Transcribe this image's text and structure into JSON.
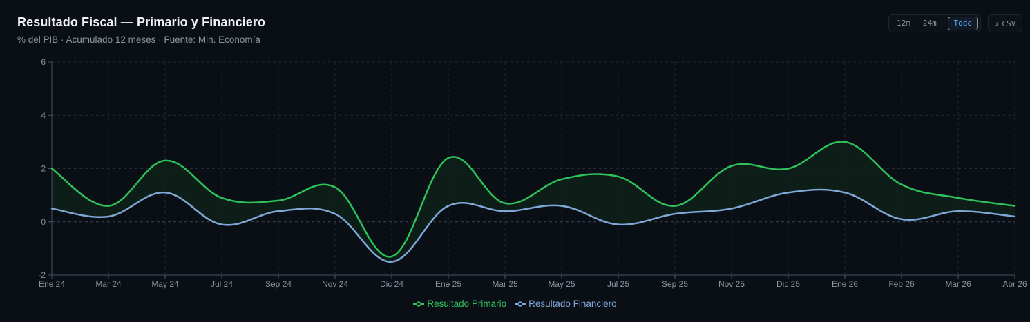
{
  "header": {
    "title": "Resultado Fiscal — Primario y Financiero",
    "subtitle": "% del PIB · Acumulado 12 meses · Fuente: Min. Economía"
  },
  "controls": {
    "ranges": [
      "12m",
      "24m",
      "Todo"
    ],
    "active_range": "Todo",
    "csv_label": "CSV",
    "csv_icon": "download-arrow-icon"
  },
  "colors": {
    "background": "#0a0e15",
    "primario": "#2fc25b",
    "financiero": "#7fa8d6",
    "grid": "#222a35",
    "axis": "#4a5361",
    "tick_text": "#8b949e",
    "fill": "#0e1f17"
  },
  "chart_data": {
    "type": "line",
    "x": [
      "Ene 24",
      "Mar 24",
      "May 24",
      "Jul 24",
      "Sep 24",
      "Nov 24",
      "Dic 24",
      "Ene 25",
      "Mar 25",
      "May 25",
      "Jul 25",
      "Sep 25",
      "Nov 25",
      "Dic 25",
      "Ene 26",
      "Feb 26",
      "Mar 26",
      "Abr 26"
    ],
    "series": [
      {
        "name": "Resultado Primario",
        "values": [
          2.0,
          0.6,
          2.3,
          0.9,
          0.8,
          1.3,
          -1.3,
          2.4,
          0.7,
          1.6,
          1.7,
          0.6,
          2.1,
          2.0,
          3.0,
          1.4,
          0.9,
          0.6
        ]
      },
      {
        "name": "Resultado Financiero",
        "values": [
          0.5,
          0.2,
          1.1,
          -0.1,
          0.4,
          0.3,
          -1.5,
          0.6,
          0.4,
          0.6,
          -0.1,
          0.3,
          0.5,
          1.1,
          1.1,
          0.1,
          0.4,
          0.2
        ]
      }
    ],
    "ylim": [
      -2,
      6
    ],
    "yticks": [
      -2,
      0,
      2,
      4,
      6
    ],
    "grid": true,
    "area_between_series": true,
    "legend": "bottom-center"
  }
}
